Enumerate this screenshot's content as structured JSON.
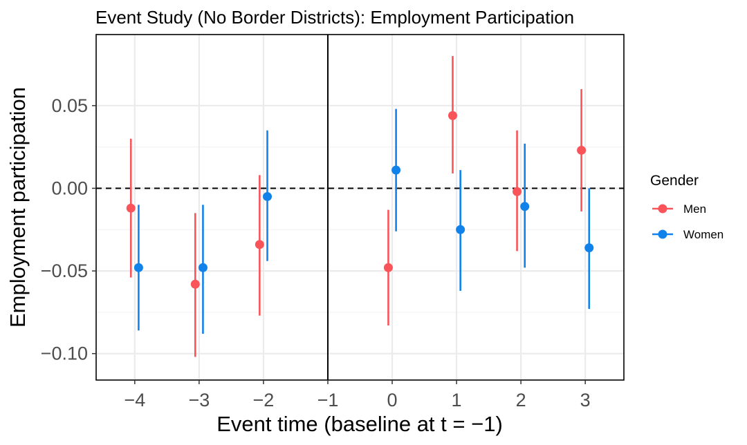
{
  "chart_data": {
    "type": "scatter",
    "title": "Event Study (No Border Districts): Employment Participation",
    "xlabel": "Event time (baseline at t = −1)",
    "ylabel": "Employment participation",
    "x_ticks": [
      -4,
      -3,
      -2,
      -1,
      0,
      1,
      2,
      3
    ],
    "x_tick_labels": [
      "−4",
      "−3",
      "−2",
      "−1",
      "0",
      "1",
      "2",
      "3"
    ],
    "xlim": [
      -4.6,
      3.6
    ],
    "y_ticks": [
      -0.1,
      -0.05,
      0.0,
      0.05
    ],
    "y_tick_labels": [
      "−0.10",
      "−0.05",
      "0.00",
      "0.05"
    ],
    "ylim": [
      -0.116,
      0.093
    ],
    "baseline_x": -1,
    "reference_y": 0,
    "grid": true,
    "legend": {
      "title": "Gender",
      "position": "right"
    },
    "dodge": 0.12,
    "series": [
      {
        "name": "Men",
        "color": "#F8545A",
        "x": [
          -4,
          -3,
          -2,
          0,
          1,
          2,
          3
        ],
        "estimate": [
          -0.012,
          -0.058,
          -0.034,
          -0.048,
          0.044,
          -0.002,
          0.023
        ],
        "ci_low": [
          -0.054,
          -0.102,
          -0.077,
          -0.083,
          0.009,
          -0.038,
          -0.014
        ],
        "ci_high": [
          0.03,
          -0.015,
          0.008,
          -0.013,
          0.08,
          0.035,
          0.06
        ]
      },
      {
        "name": "Women",
        "color": "#1282EB",
        "x": [
          -4,
          -3,
          -2,
          0,
          1,
          2,
          3
        ],
        "estimate": [
          -0.048,
          -0.048,
          -0.005,
          0.011,
          -0.025,
          -0.011,
          -0.036
        ],
        "ci_low": [
          -0.086,
          -0.088,
          -0.044,
          -0.026,
          -0.062,
          -0.048,
          -0.073
        ],
        "ci_high": [
          -0.01,
          -0.01,
          0.035,
          0.048,
          0.011,
          0.027,
          0.0
        ]
      }
    ]
  }
}
